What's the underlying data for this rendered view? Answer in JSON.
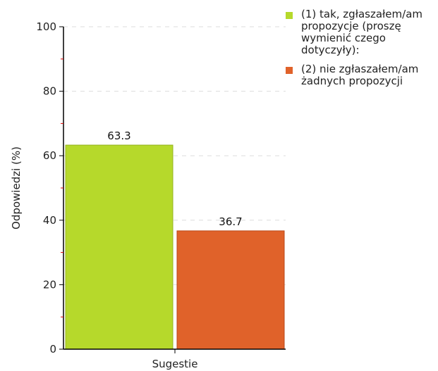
{
  "colors": {
    "series1": "#b6d92b",
    "series2": "#e0622a",
    "grid": "#dddddd",
    "axis": "#000000",
    "tick_red": "#dd0000"
  },
  "chart_data": {
    "type": "bar",
    "categories": [
      "Sugestie"
    ],
    "series": [
      {
        "name": "(1) tak, zgłaszałem/am propozycje (proszę wymienić czego dotyczyły):",
        "values": [
          63.3
        ]
      },
      {
        "name": "(2) nie zgłaszałem/am żadnych propozycji",
        "values": [
          36.7
        ]
      }
    ],
    "data_labels": [
      "63.3",
      "36.7"
    ],
    "title": "",
    "xlabel": "Sugestie",
    "ylabel": "Odpowiedzi (%)",
    "ylim": [
      0,
      100
    ],
    "yticks": [
      0,
      20,
      40,
      60,
      80,
      100
    ],
    "grid": true,
    "legend": "top-right"
  }
}
